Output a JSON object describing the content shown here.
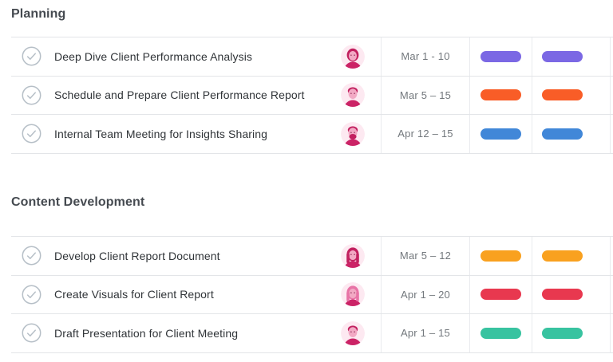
{
  "sections": [
    {
      "title": "Planning",
      "tasks": [
        {
          "name": "Deep Dive Client Performance Analysis",
          "dates": "Mar 1 - 10",
          "bar_color": "#7b68e4",
          "avatar": "woman-bob",
          "status_icon": "check-circle-icon"
        },
        {
          "name": "Schedule and Prepare Client Performance Report",
          "dates": "Mar 5 – 15",
          "bar_color": "#f95d27",
          "avatar": "man-short-hair",
          "status_icon": "check-circle-icon"
        },
        {
          "name": "Internal Team Meeting for Insights Sharing",
          "dates": "Apr 12 – 15",
          "bar_color": "#4187d8",
          "avatar": "man-beard",
          "status_icon": "check-circle-icon"
        }
      ]
    },
    {
      "title": "Content Development",
      "tasks": [
        {
          "name": "Develop Client Report Document",
          "dates": "Mar 5 – 12",
          "bar_color": "#f9a11f",
          "avatar": "woman-long-hair",
          "status_icon": "check-circle-icon"
        },
        {
          "name": "Create Visuals for Client Report",
          "dates": "Apr 1 – 20",
          "bar_color": "#e8384f",
          "avatar": "woman-blonde",
          "status_icon": "check-circle-icon"
        },
        {
          "name": "Draft Presentation for Client Meeting",
          "dates": "Apr 1 – 15",
          "bar_color": "#38c3a0",
          "avatar": "man-dark-hair",
          "status_icon": "check-circle-icon"
        }
      ]
    }
  ],
  "colors": {
    "check_icon": "#b6bfc7",
    "row_border": "#e3e5e8",
    "column_border": "#e9ebee",
    "title_text": "#454a50",
    "task_text": "#303438",
    "date_text": "#73787d",
    "avatar_bg": "#fde9f1",
    "avatar_hair": "#c2205f",
    "avatar_hair_light": "#e873a6",
    "avatar_skin": "#f2a9c4",
    "avatar_shoulders": "#cb2366",
    "avatar_eyes": "#9c3b63"
  }
}
